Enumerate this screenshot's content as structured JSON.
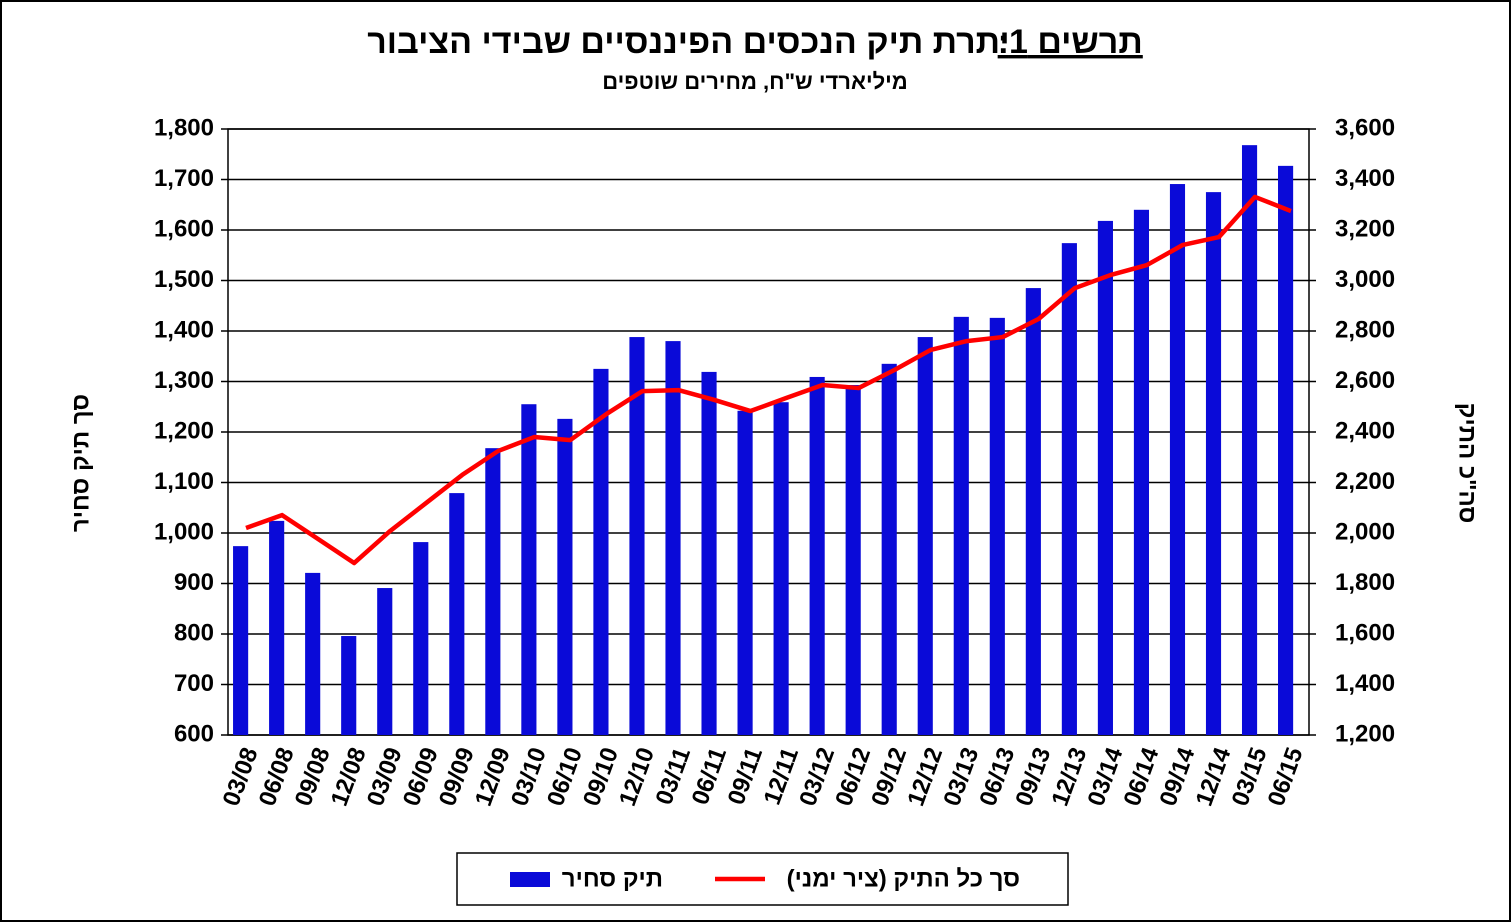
{
  "chart_data": {
    "type": "bar",
    "title_label": "תרשים 1:",
    "title": "יתרת תיק הנכסים הפיננסיים שבידי הציבור",
    "subtitle": "מיליארדי ש\"ח, מחירים שוטפים",
    "y_label": "סך תיק סחיר",
    "y2_label": "סה\"כ התיק",
    "categories": [
      "03/08",
      "06/08",
      "09/08",
      "12/08",
      "03/09",
      "06/09",
      "09/09",
      "12/09",
      "03/10",
      "06/10",
      "09/10",
      "12/10",
      "03/11",
      "06/11",
      "09/11",
      "12/11",
      "03/12",
      "06/12",
      "09/12",
      "12/12",
      "03/13",
      "06/13",
      "09/13",
      "12/13",
      "03/14",
      "06/14",
      "09/14",
      "12/14",
      "03/15",
      "06/15"
    ],
    "series": [
      {
        "name": "תיק סחיר",
        "color": "#0a0ad8",
        "type": "bar",
        "values": [
          974,
          1024,
          921,
          796,
          891,
          982,
          1079,
          1168,
          1255,
          1226,
          1325,
          1388,
          1380,
          1319,
          1242,
          1259,
          1309,
          1293,
          1335,
          1388,
          1428,
          1426,
          1485,
          1574,
          1618,
          1640,
          1691,
          1675,
          1768,
          1727
        ]
      },
      {
        "name": "סך כל התיק (ציר ימני)",
        "color": "#ff0000",
        "type": "line",
        "axis": "y2",
        "values": [
          2020,
          2071,
          1976,
          1881,
          2008,
          2119,
          2230,
          2325,
          2380,
          2368,
          2471,
          2562,
          2566,
          2527,
          2483,
          2535,
          2586,
          2574,
          2646,
          2725,
          2760,
          2776,
          2848,
          2970,
          3022,
          3061,
          3141,
          3172,
          3331,
          3275
        ]
      }
    ],
    "ylim": [
      600,
      1800
    ],
    "yticks": [
      600,
      700,
      800,
      900,
      {
        "value": 1000,
        "label": "1,000"
      },
      {
        "value": 1100,
        "label": "1,100"
      },
      {
        "value": 1200,
        "label": "1,200"
      },
      {
        "value": 1300,
        "label": "1,300"
      },
      {
        "value": 1400,
        "label": "1,400"
      },
      {
        "value": 1500,
        "label": "1,500"
      },
      {
        "value": 1600,
        "label": "1,600"
      },
      {
        "value": 1700,
        "label": "1,700"
      },
      {
        "value": 1800,
        "label": "1,800"
      }
    ],
    "y2lim": [
      1200,
      3600
    ],
    "y2ticks": [
      {
        "value": 1200,
        "label": "1,200"
      },
      {
        "value": 1400,
        "label": "1,400"
      },
      {
        "value": 1600,
        "label": "1,600"
      },
      {
        "value": 1800,
        "label": "1,800"
      },
      {
        "value": 2000,
        "label": "2,000"
      },
      {
        "value": 2200,
        "label": "2,200"
      },
      {
        "value": 2400,
        "label": "2,400"
      },
      {
        "value": 2600,
        "label": "2,600"
      },
      {
        "value": 2800,
        "label": "2,800"
      },
      {
        "value": 3000,
        "label": "3,000"
      },
      {
        "value": 3200,
        "label": "3,200"
      },
      {
        "value": 3400,
        "label": "3,400"
      },
      {
        "value": 3600,
        "label": "3,600"
      }
    ],
    "grid": true,
    "legend": "bottom"
  }
}
